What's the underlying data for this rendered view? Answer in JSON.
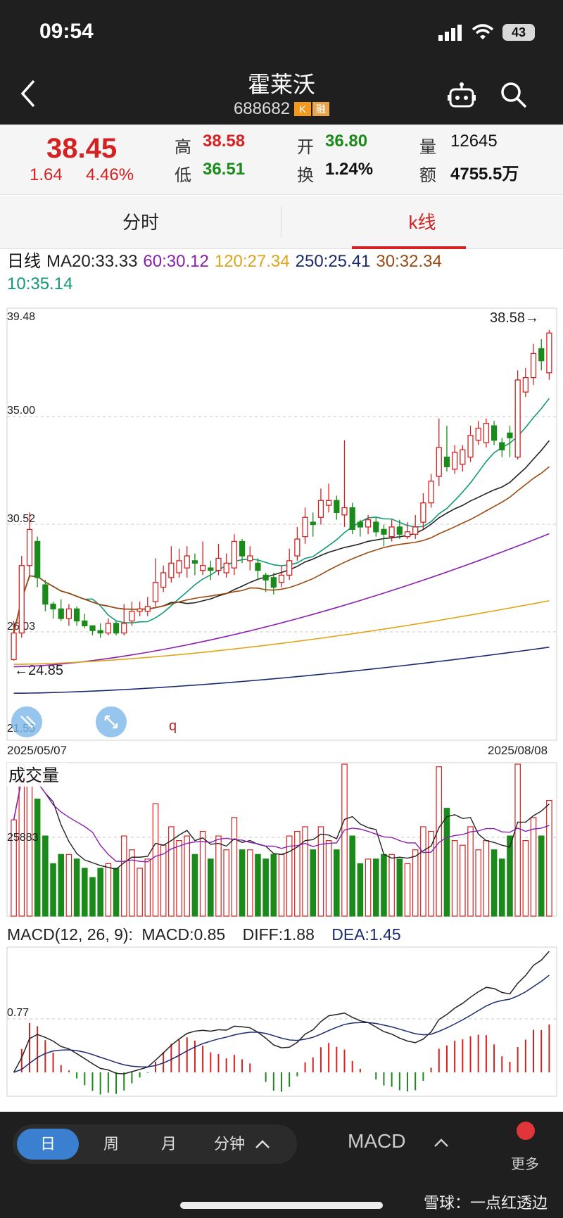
{
  "status": {
    "time": "09:54",
    "battery": "43"
  },
  "header": {
    "title": "霍莱沃",
    "code": "688682",
    "tag_k": "K",
    "tag_rong": "融"
  },
  "quote": {
    "price": "38.45",
    "change": "1.64",
    "change_pct": "4.46%",
    "high_label": "高",
    "high": "38.58",
    "low_label": "低",
    "low": "36.51",
    "open_label": "开",
    "open": "36.80",
    "turnover_label": "换",
    "turnover": "1.24%",
    "volume_label": "量",
    "volume": "12645",
    "amount_label": "额",
    "amount": "4755.5万"
  },
  "tabs": {
    "intraday": "分时",
    "kline": "k线"
  },
  "ma_legend": {
    "period": "日线",
    "ma20": "MA20:33.33",
    "ma60": "60:30.12",
    "ma120": "120:27.34",
    "ma250": "250:25.41",
    "ma30": "30:32.34",
    "ma10": "10:35.14"
  },
  "kchart": {
    "y_top": "39.48",
    "y_35": "35.00",
    "y_3052": "30.52",
    "y_2603": "26.03",
    "y_bottom": "21.55",
    "max_label": "38.58→",
    "min_label": "←24.85",
    "date_start": "2025/05/07",
    "date_end": "2025/08/08",
    "marker": "q"
  },
  "volume": {
    "title": "成交量",
    "mid_label": "25883"
  },
  "macd": {
    "params": "MACD(12, 26, 9):",
    "macd": "MACD:0.85",
    "diff": "DIFF:1.88",
    "dea": "DEA:1.45",
    "mid_label": "0.77"
  },
  "bottom": {
    "day": "日",
    "week": "周",
    "month": "月",
    "minute": "分钟",
    "indicator": "MACD",
    "more": "更多",
    "watermark": "雪球：一点红透边"
  },
  "colors": {
    "up": "#d42222",
    "down": "#1a8a1a",
    "ma10": "#119977",
    "ma20": "#222222",
    "ma30": "#9b4a12",
    "ma60": "#8a1fb0",
    "ma120": "#e0a418",
    "ma250": "#1b2a70"
  },
  "chart_data": {
    "type": "candlestick",
    "ylim": [
      21.55,
      39.48
    ],
    "candles": [
      {
        "o": 24.9,
        "c": 26.0,
        "h": 26.5,
        "l": 24.85
      },
      {
        "o": 26.0,
        "c": 28.8,
        "h": 29.2,
        "l": 25.8
      },
      {
        "o": 28.8,
        "c": 30.3,
        "h": 31.0,
        "l": 28.3
      },
      {
        "o": 29.8,
        "c": 28.3,
        "h": 30.0,
        "l": 27.9
      },
      {
        "o": 28.0,
        "c": 27.2,
        "h": 28.2,
        "l": 26.9
      },
      {
        "o": 27.2,
        "c": 27.0,
        "h": 27.3,
        "l": 26.6
      },
      {
        "o": 27.0,
        "c": 26.6,
        "h": 27.4,
        "l": 26.5
      },
      {
        "o": 26.6,
        "c": 27.0,
        "h": 27.2,
        "l": 26.3
      },
      {
        "o": 27.0,
        "c": 26.5,
        "h": 27.1,
        "l": 26.3
      },
      {
        "o": 26.5,
        "c": 26.3,
        "h": 26.8,
        "l": 26.2
      },
      {
        "o": 26.3,
        "c": 26.1,
        "h": 26.3,
        "l": 25.9
      },
      {
        "o": 26.1,
        "c": 26.0,
        "h": 26.4,
        "l": 25.8
      },
      {
        "o": 26.0,
        "c": 26.4,
        "h": 26.6,
        "l": 25.9
      },
      {
        "o": 26.4,
        "c": 26.0,
        "h": 26.5,
        "l": 25.9
      },
      {
        "o": 26.0,
        "c": 26.4,
        "h": 27.2,
        "l": 25.9
      },
      {
        "o": 26.5,
        "c": 26.9,
        "h": 27.3,
        "l": 26.3
      },
      {
        "o": 26.9,
        "c": 27.0,
        "h": 27.3,
        "l": 26.7
      },
      {
        "o": 26.9,
        "c": 27.1,
        "h": 27.5,
        "l": 26.7
      },
      {
        "o": 27.3,
        "c": 28.1,
        "h": 29.1,
        "l": 27.1
      },
      {
        "o": 27.9,
        "c": 28.5,
        "h": 28.8,
        "l": 27.7
      },
      {
        "o": 28.3,
        "c": 28.9,
        "h": 29.6,
        "l": 28.1
      },
      {
        "o": 28.5,
        "c": 29.0,
        "h": 29.5,
        "l": 28.3
      },
      {
        "o": 28.7,
        "c": 29.2,
        "h": 29.6,
        "l": 28.3
      },
      {
        "o": 29.0,
        "c": 28.9,
        "h": 29.3,
        "l": 28.4
      },
      {
        "o": 28.6,
        "c": 28.8,
        "h": 29.8,
        "l": 28.4
      },
      {
        "o": 28.7,
        "c": 28.6,
        "h": 29.0,
        "l": 28.2
      },
      {
        "o": 28.6,
        "c": 29.1,
        "h": 29.7,
        "l": 28.4
      },
      {
        "o": 28.5,
        "c": 28.9,
        "h": 29.3,
        "l": 28.3
      },
      {
        "o": 28.7,
        "c": 29.8,
        "h": 30.1,
        "l": 28.4
      },
      {
        "o": 29.8,
        "c": 29.2,
        "h": 29.9,
        "l": 28.9
      },
      {
        "o": 29.0,
        "c": 29.2,
        "h": 29.6,
        "l": 28.6
      },
      {
        "o": 28.9,
        "c": 28.6,
        "h": 29.1,
        "l": 28.2
      },
      {
        "o": 28.4,
        "c": 28.2,
        "h": 28.5,
        "l": 27.7
      },
      {
        "o": 28.3,
        "c": 27.9,
        "h": 28.5,
        "l": 27.6
      },
      {
        "o": 28.1,
        "c": 28.4,
        "h": 28.8,
        "l": 27.9
      },
      {
        "o": 28.4,
        "c": 29.0,
        "h": 29.5,
        "l": 28.2
      },
      {
        "o": 29.2,
        "c": 29.9,
        "h": 30.4,
        "l": 29.0
      },
      {
        "o": 30.0,
        "c": 30.8,
        "h": 31.2,
        "l": 29.7
      },
      {
        "o": 30.6,
        "c": 30.5,
        "h": 31.0,
        "l": 30.0
      },
      {
        "o": 30.8,
        "c": 31.5,
        "h": 32.0,
        "l": 30.5
      },
      {
        "o": 31.3,
        "c": 31.5,
        "h": 32.2,
        "l": 31.0
      },
      {
        "o": 31.5,
        "c": 31.0,
        "h": 31.7,
        "l": 30.7
      },
      {
        "o": 30.9,
        "c": 31.2,
        "h": 34.0,
        "l": 30.4
      },
      {
        "o": 31.2,
        "c": 30.3,
        "h": 31.4,
        "l": 30.1
      },
      {
        "o": 30.6,
        "c": 30.4,
        "h": 30.7,
        "l": 30.0
      },
      {
        "o": 30.4,
        "c": 30.7,
        "h": 30.9,
        "l": 30.1
      },
      {
        "o": 30.6,
        "c": 30.2,
        "h": 30.8,
        "l": 30.0
      },
      {
        "o": 30.3,
        "c": 30.1,
        "h": 30.5,
        "l": 29.6
      },
      {
        "o": 30.0,
        "c": 30.4,
        "h": 30.7,
        "l": 29.8
      },
      {
        "o": 30.4,
        "c": 30.1,
        "h": 30.7,
        "l": 29.9
      },
      {
        "o": 30.0,
        "c": 30.2,
        "h": 30.6,
        "l": 29.9
      },
      {
        "o": 30.1,
        "c": 30.4,
        "h": 30.9,
        "l": 29.9
      },
      {
        "o": 30.6,
        "c": 31.4,
        "h": 31.8,
        "l": 30.3
      },
      {
        "o": 31.4,
        "c": 32.3,
        "h": 32.6,
        "l": 31.2
      },
      {
        "o": 32.5,
        "c": 33.7,
        "h": 34.9,
        "l": 32.1
      },
      {
        "o": 33.3,
        "c": 32.9,
        "h": 34.6,
        "l": 32.7
      },
      {
        "o": 32.8,
        "c": 33.5,
        "h": 33.8,
        "l": 32.6
      },
      {
        "o": 33.0,
        "c": 33.6,
        "h": 33.8,
        "l": 32.7
      },
      {
        "o": 33.3,
        "c": 34.2,
        "h": 34.6,
        "l": 33.1
      },
      {
        "o": 34.0,
        "c": 34.5,
        "h": 34.8,
        "l": 33.8
      },
      {
        "o": 33.9,
        "c": 34.7,
        "h": 34.9,
        "l": 33.7
      },
      {
        "o": 34.6,
        "c": 34.0,
        "h": 34.8,
        "l": 33.8
      },
      {
        "o": 33.9,
        "c": 33.6,
        "h": 34.1,
        "l": 33.3
      },
      {
        "o": 34.3,
        "c": 34.1,
        "h": 34.6,
        "l": 33.3
      },
      {
        "o": 33.3,
        "c": 36.5,
        "h": 36.9,
        "l": 33.2
      },
      {
        "o": 36.0,
        "c": 36.6,
        "h": 37.0,
        "l": 35.8
      },
      {
        "o": 36.6,
        "c": 37.6,
        "h": 38.0,
        "l": 36.3
      },
      {
        "o": 37.8,
        "c": 37.3,
        "h": 38.2,
        "l": 36.9
      },
      {
        "o": 36.8,
        "c": 38.45,
        "h": 38.58,
        "l": 36.51
      }
    ],
    "ma10_last": 35.14,
    "ma20_last": 33.33,
    "ma30_last": 32.34,
    "ma60_last": 30.12,
    "ma120_last": 27.34,
    "ma250_last": 25.41,
    "volume_ref": 25883,
    "macd_ref": 0.77
  }
}
